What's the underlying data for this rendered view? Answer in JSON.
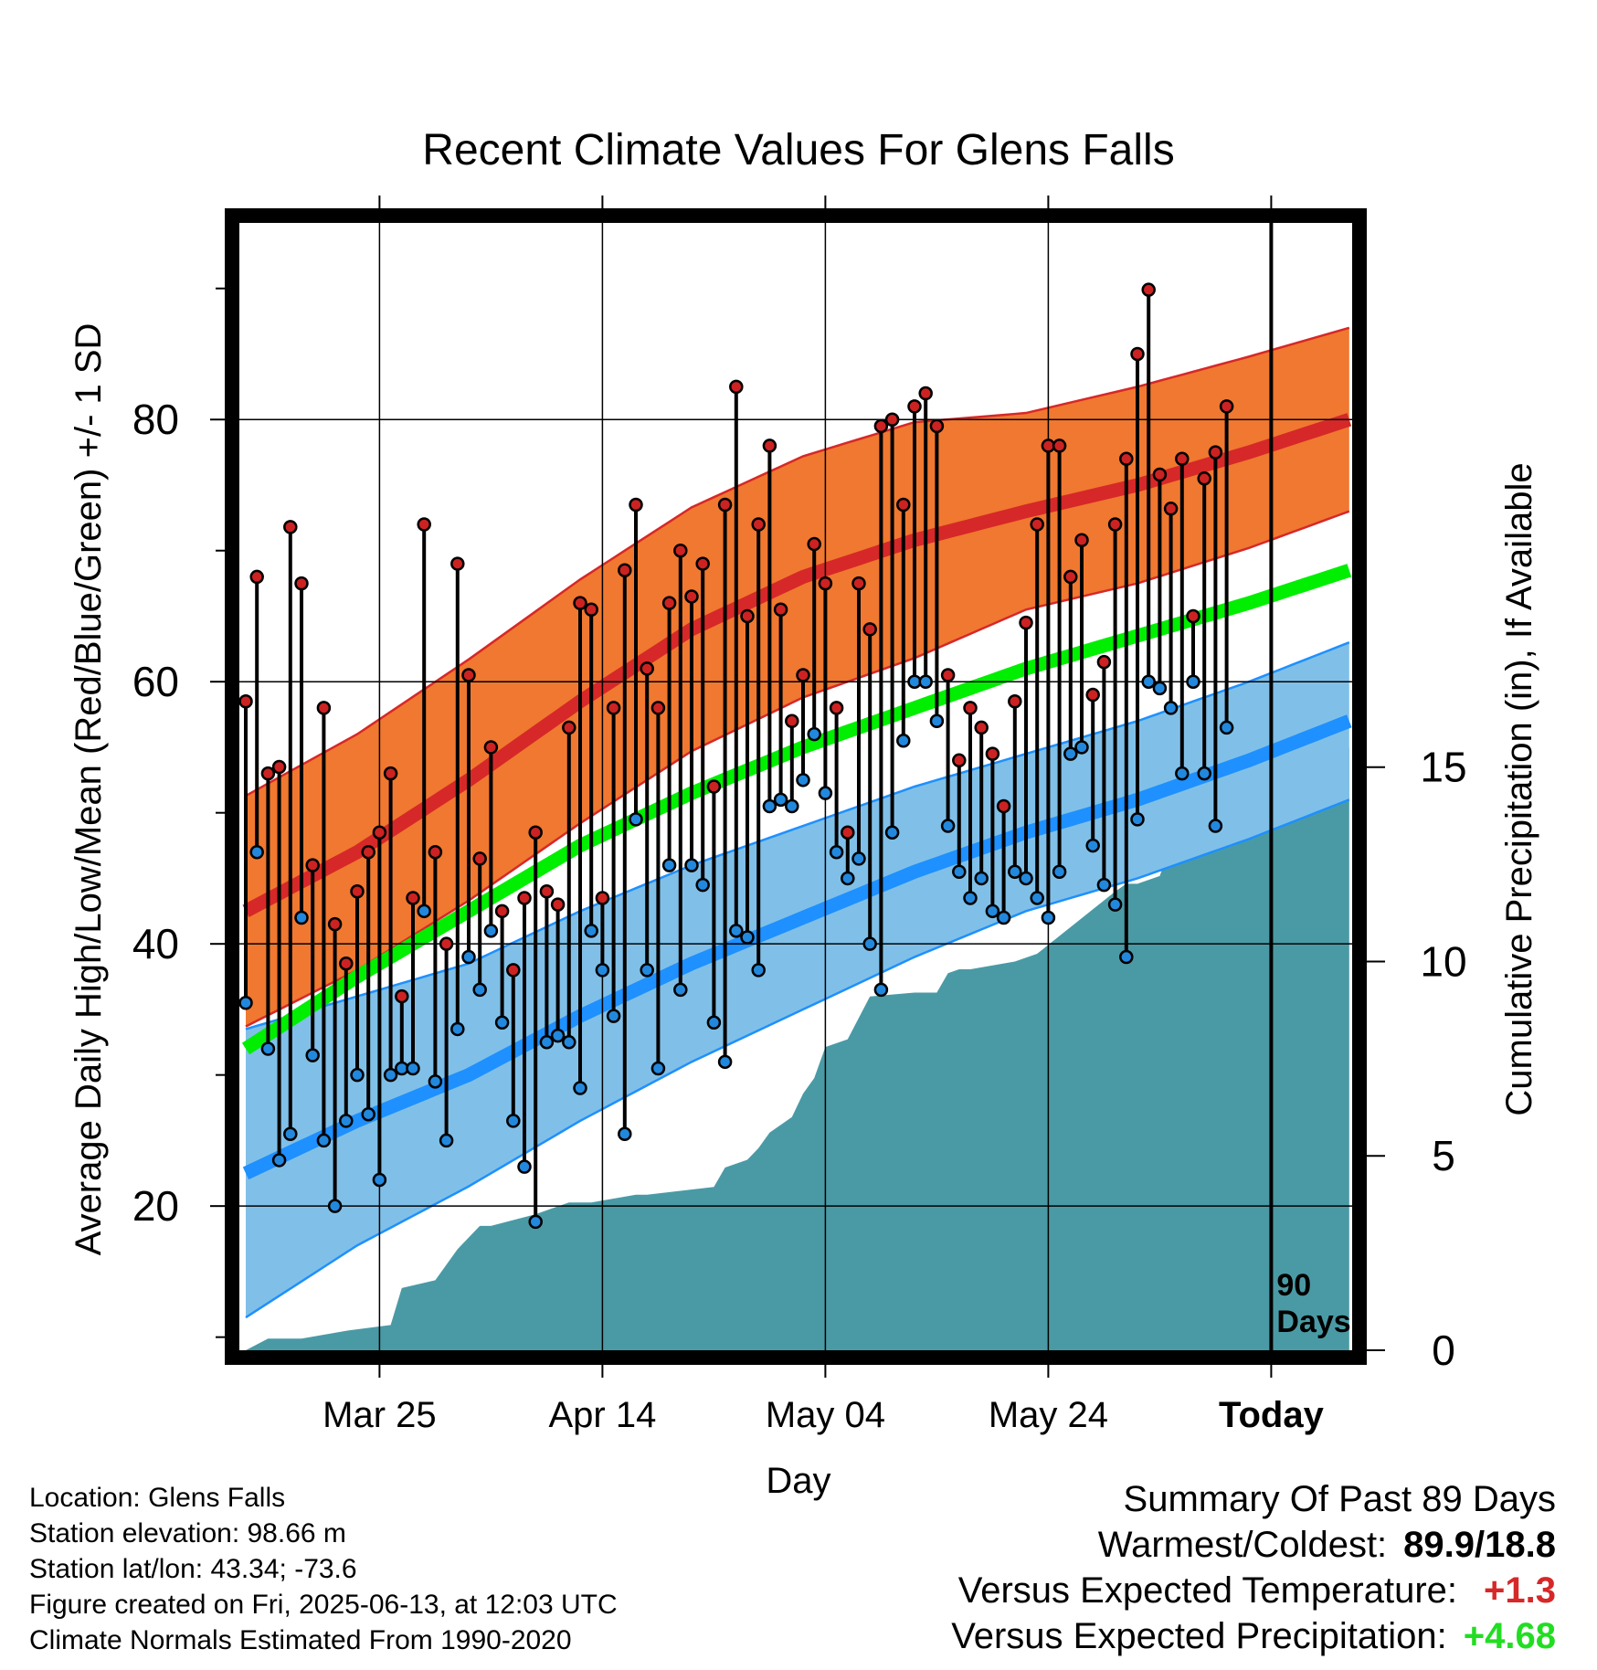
{
  "chart_data": {
    "type": "line",
    "title": "Recent Climate Values For Glens Falls",
    "xlabel": "Day",
    "ylabel": "Average Daily High/Low/Mean (Red/Blue/Green) +/- 1 SD",
    "ylabel_right": "Cumulative Precipitation (in), If Available",
    "x_ticks": [
      "Mar 25",
      "Apr 14",
      "May 04",
      "May 24",
      "Today"
    ],
    "ylim": [
      9,
      95
    ],
    "y_ticks": [
      20,
      40,
      60,
      80
    ],
    "ylim_right": [
      0,
      29
    ],
    "y_ticks_right": [
      0,
      5,
      10,
      15
    ],
    "today_marker_label": "90 Days",
    "grid": true,
    "colors": {
      "high_band": "#f07830",
      "high_mean": "#d62828",
      "low_band": "#80c0e8",
      "low_mean": "#1e90ff",
      "mean_normal": "#00ee00",
      "precip": "#4a9aa5",
      "high_point": "#cc2222",
      "low_point": "#2288dd"
    },
    "series": [
      {
        "name": "Normal High",
        "role": "high_mean",
        "x": [
          0,
          10,
          20,
          30,
          40,
          50,
          60,
          70,
          80,
          90,
          99
        ],
        "values": [
          42.5,
          47.0,
          52.5,
          58.5,
          64.0,
          68.0,
          70.8,
          73.0,
          75.0,
          77.5,
          80.0
        ],
        "sd": [
          8.8,
          9.0,
          9.2,
          9.3,
          9.3,
          9.2,
          9.0,
          7.5,
          7.5,
          7.3,
          7.0
        ]
      },
      {
        "name": "Normal Low",
        "role": "low_mean",
        "x": [
          0,
          10,
          20,
          30,
          40,
          50,
          60,
          70,
          80,
          90,
          99
        ],
        "values": [
          22.5,
          26.5,
          30.0,
          34.5,
          38.5,
          42.0,
          45.5,
          48.5,
          51.0,
          54.0,
          57.0
        ],
        "sd": [
          11.0,
          9.5,
          8.5,
          8.0,
          7.5,
          7.0,
          6.5,
          6.0,
          6.0,
          6.0,
          6.0
        ]
      },
      {
        "name": "Normal Mean",
        "role": "mean_normal",
        "x": [
          0,
          10,
          20,
          30,
          40,
          50,
          60,
          70,
          80,
          90,
          99
        ],
        "values": [
          32.0,
          37.5,
          42.5,
          47.5,
          51.5,
          55.0,
          58.0,
          61.0,
          63.5,
          66.0,
          68.5
        ]
      },
      {
        "name": "Daily High",
        "role": "high_point",
        "x": [
          0,
          1,
          2,
          3,
          4,
          5,
          6,
          7,
          8,
          9,
          10,
          11,
          12,
          13,
          14,
          15,
          16,
          17,
          18,
          19,
          20,
          21,
          22,
          23,
          24,
          25,
          26,
          27,
          28,
          29,
          30,
          31,
          32,
          33,
          34,
          35,
          36,
          37,
          38,
          39,
          40,
          41,
          42,
          43,
          44,
          45,
          46,
          47,
          48,
          49,
          50,
          51,
          52,
          53,
          54,
          55,
          56,
          57,
          58,
          59,
          60,
          61,
          62,
          63,
          64,
          65,
          66,
          67,
          68,
          69,
          70,
          71,
          72,
          73,
          74,
          75,
          76,
          77,
          78,
          79,
          80,
          81,
          82,
          83,
          84,
          85,
          86,
          87,
          88
        ],
        "values": [
          58.5,
          68.0,
          53.0,
          53.5,
          71.8,
          67.5,
          46.0,
          58.0,
          41.5,
          38.5,
          44.0,
          47.0,
          48.5,
          53.0,
          36.0,
          43.5,
          72.0,
          47.0,
          40.0,
          69.0,
          60.5,
          46.5,
          55.0,
          42.5,
          38.0,
          43.5,
          48.5,
          44.0,
          43.0,
          56.5,
          66.0,
          65.5,
          43.5,
          58.0,
          68.5,
          73.5,
          61.0,
          58.0,
          66.0,
          70.0,
          66.5,
          69.0,
          52.0,
          73.5,
          82.5,
          65.0,
          72.0,
          78.0,
          65.5,
          57.0,
          60.5,
          70.5,
          67.5,
          58.0,
          48.5,
          67.5,
          64.0,
          79.5,
          80.0,
          73.5,
          81.0,
          82.0,
          79.5,
          60.5,
          54.0,
          58.0,
          56.5,
          54.5,
          50.5,
          58.5,
          64.5,
          72.0,
          78.0,
          78.0,
          68.0,
          70.8,
          59.0,
          61.5,
          72.0,
          77.0,
          85.0,
          89.9,
          75.8,
          73.2,
          77.0,
          65.0,
          75.5,
          77.5,
          81.0
        ]
      },
      {
        "name": "Daily Low",
        "role": "low_point",
        "x": [
          0,
          1,
          2,
          3,
          4,
          5,
          6,
          7,
          8,
          9,
          10,
          11,
          12,
          13,
          14,
          15,
          16,
          17,
          18,
          19,
          20,
          21,
          22,
          23,
          24,
          25,
          26,
          27,
          28,
          29,
          30,
          31,
          32,
          33,
          34,
          35,
          36,
          37,
          38,
          39,
          40,
          41,
          42,
          43,
          44,
          45,
          46,
          47,
          48,
          49,
          50,
          51,
          52,
          53,
          54,
          55,
          56,
          57,
          58,
          59,
          60,
          61,
          62,
          63,
          64,
          65,
          66,
          67,
          68,
          69,
          70,
          71,
          72,
          73,
          74,
          75,
          76,
          77,
          78,
          79,
          80,
          81,
          82,
          83,
          84,
          85,
          86,
          87,
          88
        ],
        "values": [
          35.5,
          47.0,
          32.0,
          23.5,
          25.5,
          42.0,
          31.5,
          25.0,
          20.0,
          26.5,
          30.0,
          27.0,
          22.0,
          30.0,
          30.5,
          30.5,
          42.5,
          29.5,
          25.0,
          33.5,
          39.0,
          36.5,
          41.0,
          34.0,
          26.5,
          23.0,
          18.8,
          32.5,
          33.0,
          32.5,
          29.0,
          41.0,
          38.0,
          34.5,
          25.5,
          49.5,
          38.0,
          30.5,
          46.0,
          36.5,
          46.0,
          44.5,
          34.0,
          31.0,
          41.0,
          40.5,
          38.0,
          50.5,
          51.0,
          50.5,
          52.5,
          56.0,
          51.5,
          47.0,
          45.0,
          46.5,
          40.0,
          36.5,
          48.5,
          55.5,
          60.0,
          60.0,
          57.0,
          49.0,
          45.5,
          43.5,
          45.0,
          42.5,
          42.0,
          45.5,
          45.0,
          43.5,
          42.0,
          45.5,
          54.5,
          55.0,
          47.5,
          44.5,
          43.0,
          39.0,
          49.5,
          60.0,
          59.5,
          58.0,
          53.0,
          60.0,
          53.0,
          49.0,
          56.5
        ]
      },
      {
        "name": "Cumulative Precipitation",
        "role": "precip",
        "axis": "right",
        "x": [
          0,
          2,
          5,
          9,
          13,
          14,
          17,
          19,
          20,
          21,
          22,
          26,
          28,
          29,
          31,
          35,
          36,
          42,
          43,
          45,
          46,
          47,
          49,
          50,
          51,
          52,
          54,
          56,
          60,
          62,
          63,
          64,
          65,
          69,
          70,
          71,
          78,
          79,
          80,
          82,
          83,
          84,
          86,
          88,
          89,
          90,
          93,
          99
        ],
        "values": [
          0.0,
          0.3,
          0.3,
          0.5,
          0.65,
          1.6,
          1.8,
          2.6,
          2.9,
          3.2,
          3.2,
          3.5,
          3.7,
          3.8,
          3.8,
          4.0,
          4.0,
          4.2,
          4.7,
          4.9,
          5.2,
          5.6,
          6.0,
          6.6,
          7.0,
          7.8,
          8.0,
          9.1,
          9.2,
          9.2,
          9.7,
          9.8,
          9.8,
          10.0,
          10.1,
          10.2,
          11.8,
          12.0,
          12.0,
          12.2,
          13.0,
          13.5,
          14.0,
          14.2,
          15.2,
          15.5,
          15.5,
          15.5
        ]
      }
    ]
  },
  "info": {
    "location": "Location: Glens Falls",
    "elevation": "Station elevation: 98.66 m",
    "latlon": "Station lat/lon: 43.34; -73.6",
    "created": "Figure created on Fri, 2025-06-13, at 12:03 UTC",
    "normals": "Climate Normals Estimated From 1990-2020"
  },
  "summary": {
    "title": "Summary Of Past 89 Days",
    "warm_cold_label": "Warmest/Coldest:",
    "warm_cold_value": "89.9/18.8",
    "temp_label": "Versus Expected Temperature:",
    "temp_value": "+1.3",
    "temp_color": "#d62828",
    "precip_label": "Versus Expected Precipitation:",
    "precip_value": "+4.68",
    "precip_color": "#22dd22"
  }
}
